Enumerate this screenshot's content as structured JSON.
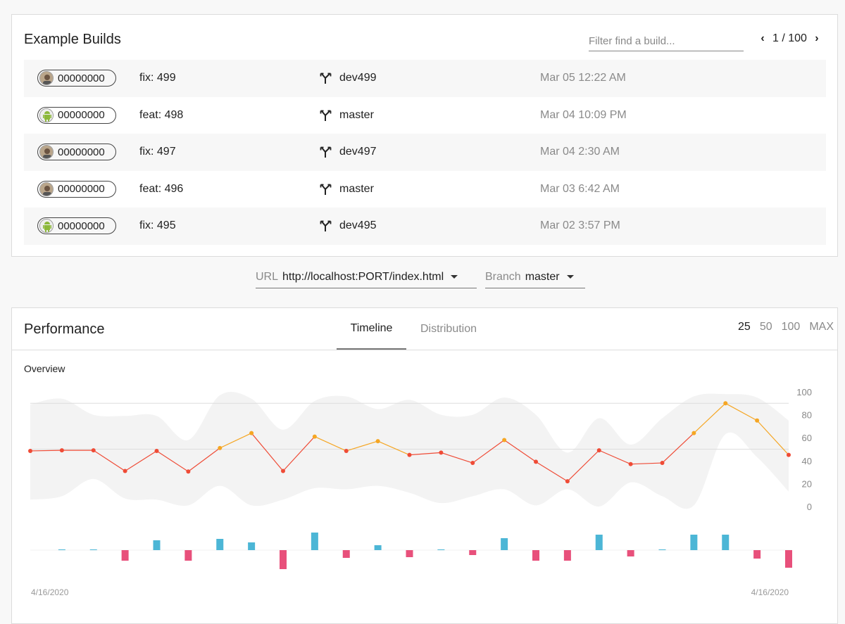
{
  "builds": {
    "title": "Example Builds",
    "filter_placeholder": "Filter find a build...",
    "pager": "1 / 100",
    "rows": [
      {
        "hash": "00000000",
        "avatar": "person",
        "message": "fix: 499",
        "branch": "dev499",
        "date": "Mar 05 12:22 AM"
      },
      {
        "hash": "00000000",
        "avatar": "android",
        "message": "feat: 498",
        "branch": "master",
        "date": "Mar 04 10:09 PM"
      },
      {
        "hash": "00000000",
        "avatar": "person",
        "message": "fix: 497",
        "branch": "dev497",
        "date": "Mar 04 2:30 AM"
      },
      {
        "hash": "00000000",
        "avatar": "person",
        "message": "feat: 496",
        "branch": "master",
        "date": "Mar 03 6:42 AM"
      },
      {
        "hash": "00000000",
        "avatar": "android",
        "message": "fix: 495",
        "branch": "dev495",
        "date": "Mar 02 3:57 PM"
      }
    ]
  },
  "selectors": {
    "url_label": "URL",
    "url_value": "http://localhost:PORT/index.html",
    "branch_label": "Branch",
    "branch_value": "master"
  },
  "performance": {
    "title": "Performance",
    "tabs": [
      {
        "label": "Timeline",
        "active": true
      },
      {
        "label": "Distribution",
        "active": false
      }
    ],
    "ranges": [
      {
        "label": "25",
        "active": true
      },
      {
        "label": "50"
      },
      {
        "label": "100"
      },
      {
        "label": "MAX"
      }
    ],
    "overview_label": "Overview"
  },
  "chart_data": {
    "type": "line",
    "y_ticks": [
      "100",
      "80",
      "60",
      "40",
      "20",
      "0"
    ],
    "ylim": [
      0,
      100
    ],
    "x_start_label": "4/16/2020",
    "x_end_label": "4/16/2020",
    "threshold_lines": [
      90,
      50
    ],
    "values": [
      48.5,
      49,
      49,
      31,
      48.5,
      30.5,
      51,
      64,
      31,
      61,
      48.5,
      57,
      45,
      47,
      38,
      58,
      39,
      22,
      49,
      37,
      38,
      64,
      90,
      75,
      45
    ],
    "band_upper": [
      89,
      94,
      80,
      79,
      79,
      58,
      97,
      94,
      67,
      92,
      96,
      85,
      93,
      80,
      80,
      95,
      80,
      47,
      77,
      54,
      77,
      96,
      98,
      95,
      75
    ],
    "band_lower": [
      6,
      9,
      24,
      7,
      6,
      1,
      18,
      1,
      6,
      16,
      15,
      18,
      12,
      3,
      9,
      15,
      1,
      15,
      0,
      21,
      9,
      1,
      63,
      43,
      13
    ],
    "delta_bars": [
      0,
      1,
      1,
      -15,
      14,
      -15,
      16,
      11,
      -27,
      25,
      -11,
      7,
      -10,
      1,
      -7,
      17,
      -15,
      -15,
      22,
      -9,
      1,
      22,
      22,
      -12,
      -25
    ],
    "colors": {
      "above": "#f5a623",
      "below": "#ef4b36",
      "band": "#f3f3f3",
      "bar_up": "#4cb6d6",
      "bar_down": "#e8507b",
      "grid": "#dddddd"
    }
  }
}
